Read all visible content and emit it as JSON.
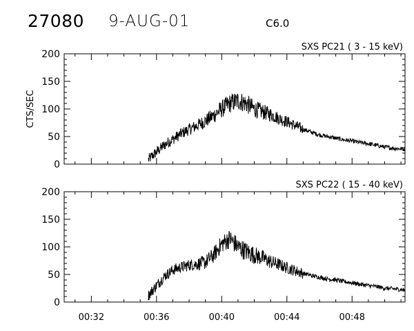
{
  "header": {
    "event_id": "27080",
    "date": "9-AUG-01",
    "goes_class": "C6.0"
  },
  "chart_data": [
    {
      "type": "line",
      "title": "SXS PC21  (  3 - 15 keV)",
      "ylabel": "CTS/SEC",
      "ylim": [
        0,
        200
      ],
      "yticks": [
        "0",
        "50",
        "100",
        "150",
        "200"
      ],
      "xlim": [
        "00:30:20",
        "00:51:15"
      ],
      "xticks": [
        "00:32",
        "00:36",
        "00:40",
        "00:44",
        "00:48"
      ],
      "show_xtick_labels": false,
      "series": [
        {
          "x": [
            "00:35:30",
            "00:36:00",
            "00:36:30",
            "00:37:00",
            "00:37:30",
            "00:38:00",
            "00:38:30",
            "00:39:00",
            "00:39:30",
            "00:40:00",
            "00:40:30",
            "00:41:00",
            "00:41:30",
            "00:42:00",
            "00:42:30",
            "00:43:00",
            "00:43:30",
            "00:44:00",
            "00:44:30",
            "00:45:00",
            "00:45:30",
            "00:46:00",
            "00:46:30",
            "00:47:00",
            "00:47:30",
            "00:48:00",
            "00:48:30",
            "00:49:00",
            "00:49:30",
            "00:50:00",
            "00:50:30",
            "00:51:15"
          ],
          "y": [
            8,
            22,
            35,
            45,
            55,
            63,
            70,
            78,
            88,
            100,
            110,
            115,
            110,
            100,
            95,
            90,
            83,
            77,
            70,
            63,
            58,
            53,
            50,
            47,
            44,
            42,
            39,
            37,
            34,
            31,
            29,
            27
          ]
        }
      ]
    },
    {
      "type": "line",
      "title": "SXS PC22  ( 15 - 40 keV)",
      "ylabel": "",
      "ylim": [
        0,
        200
      ],
      "yticks": [
        "0",
        "50",
        "100",
        "150",
        "200"
      ],
      "xlim": [
        "00:30:20",
        "00:51:15"
      ],
      "xticks": [
        "00:32",
        "00:36",
        "00:40",
        "00:44",
        "00:48"
      ],
      "show_xtick_labels": true,
      "series": [
        {
          "x": [
            "00:35:30",
            "00:36:00",
            "00:36:30",
            "00:37:00",
            "00:37:30",
            "00:38:00",
            "00:38:30",
            "00:39:00",
            "00:39:30",
            "00:40:00",
            "00:40:30",
            "00:41:00",
            "00:41:30",
            "00:42:00",
            "00:42:30",
            "00:43:00",
            "00:43:30",
            "00:44:00",
            "00:44:30",
            "00:45:00",
            "00:45:30",
            "00:46:00",
            "00:46:30",
            "00:47:00",
            "00:47:30",
            "00:48:00",
            "00:48:30",
            "00:49:00",
            "00:49:30",
            "00:50:00",
            "00:50:30",
            "00:51:15"
          ],
          "y": [
            12,
            30,
            47,
            58,
            63,
            67,
            69,
            72,
            85,
            105,
            115,
            100,
            92,
            85,
            80,
            73,
            68,
            62,
            57,
            52,
            48,
            45,
            42,
            40,
            37,
            35,
            32,
            30,
            28,
            25,
            24,
            22
          ]
        }
      ]
    }
  ]
}
